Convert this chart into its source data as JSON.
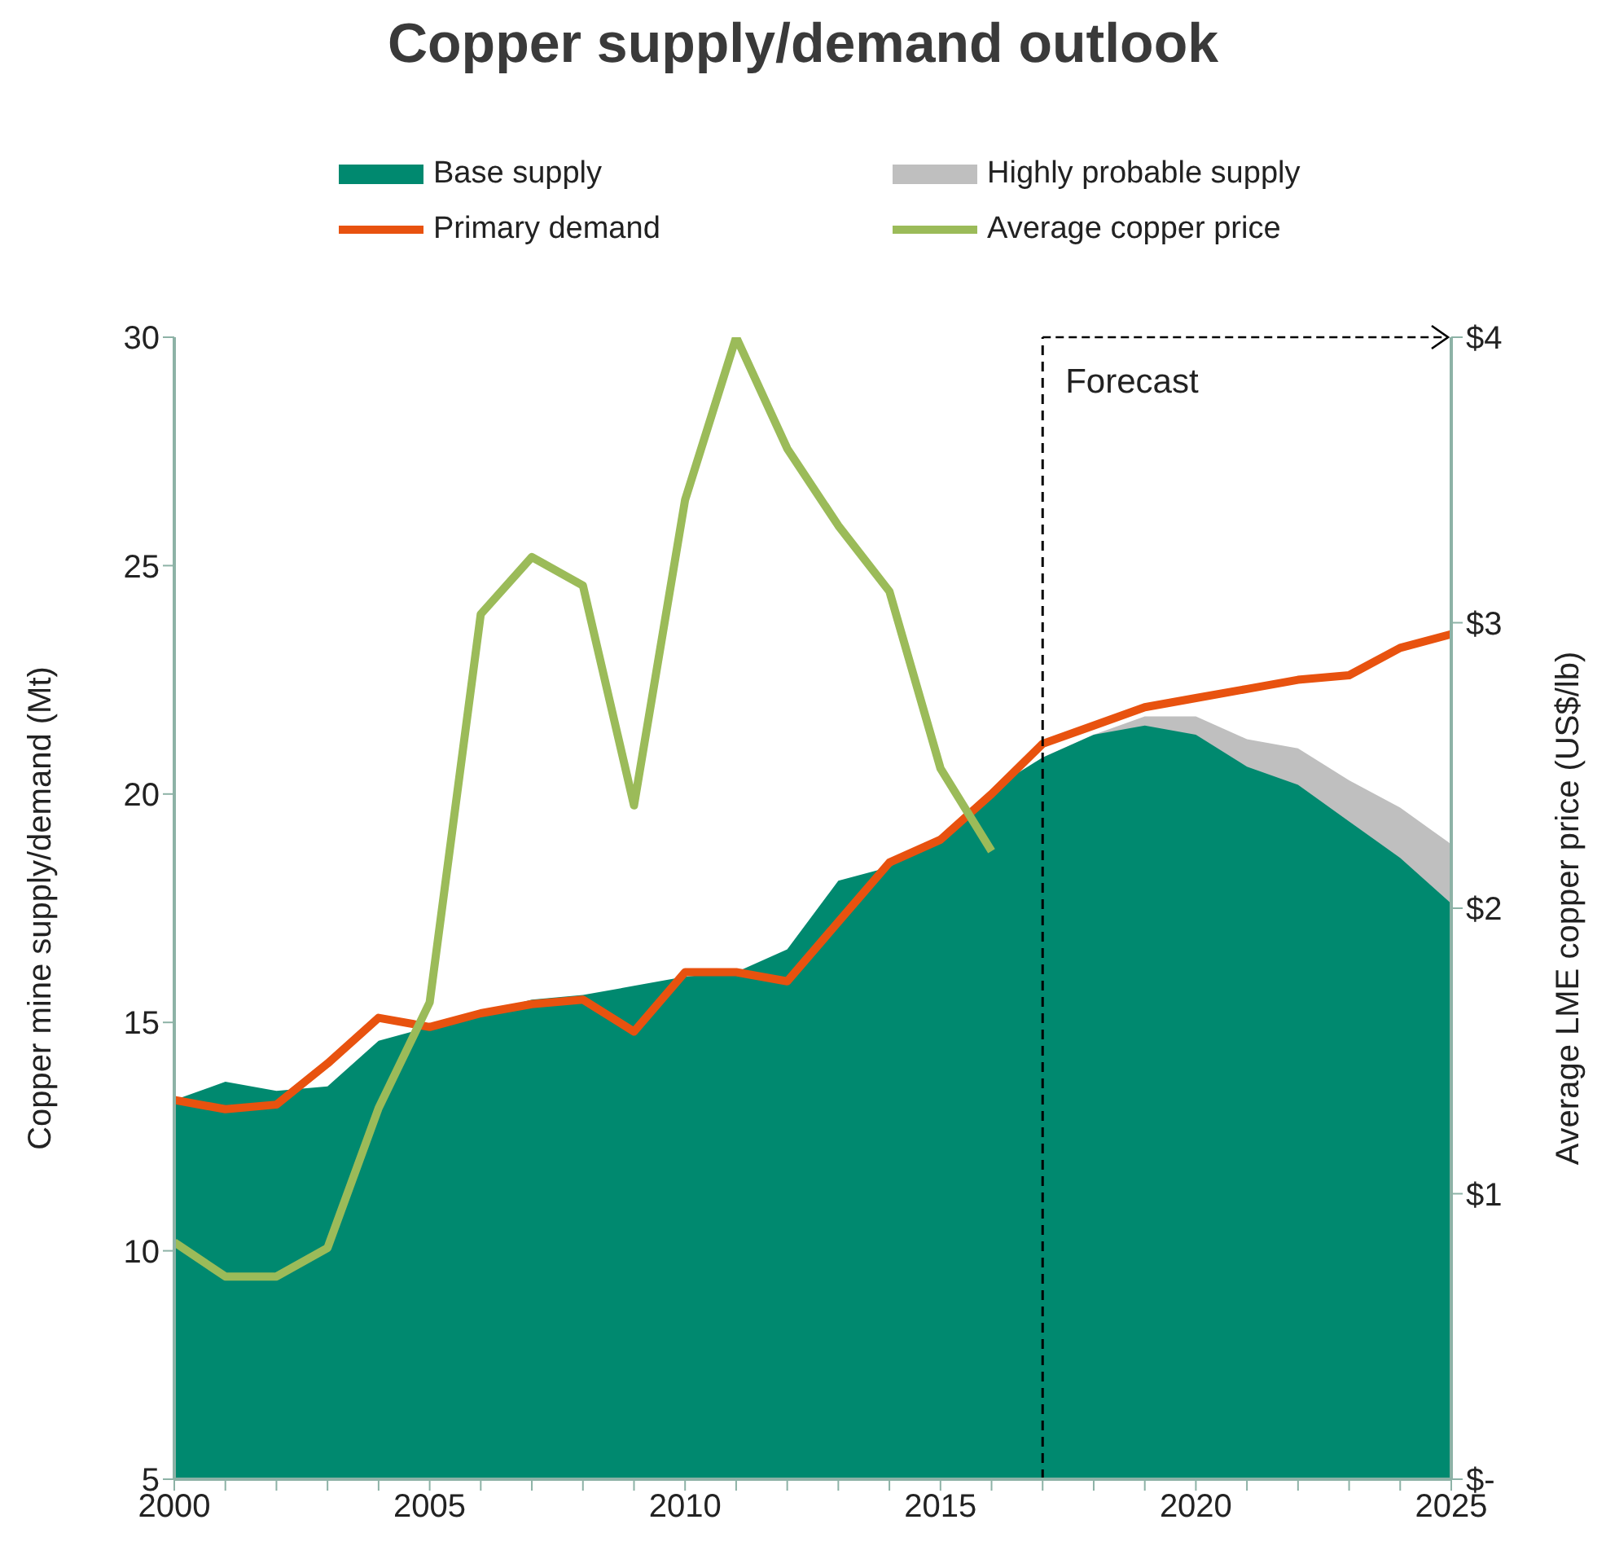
{
  "chart_data": {
    "type": "line",
    "title": "Copper supply/demand outlook",
    "ylabel": "Copper mine supply/demand (Mt)",
    "y2label": "Average LME copper price (US$/lb)",
    "x": [
      2000,
      2001,
      2002,
      2003,
      2004,
      2005,
      2006,
      2007,
      2008,
      2009,
      2010,
      2011,
      2012,
      2013,
      2014,
      2015,
      2016,
      2017,
      2018,
      2019,
      2020,
      2021,
      2022,
      2023,
      2024,
      2025
    ],
    "series": [
      {
        "name": "Base supply",
        "type": "area",
        "color": "#00896f",
        "values": [
          13.3,
          13.7,
          13.5,
          13.6,
          14.6,
          14.9,
          15.2,
          15.5,
          15.6,
          15.8,
          16.0,
          16.1,
          16.6,
          18.1,
          18.4,
          19.1,
          20.1,
          20.8,
          21.3,
          21.5,
          21.3,
          20.6,
          20.2,
          19.4,
          18.6,
          17.6
        ]
      },
      {
        "name": "Highly probable supply",
        "type": "area",
        "color": "#bfbfbf",
        "x": [
          2017,
          2018,
          2019,
          2020,
          2021,
          2022,
          2023,
          2024,
          2025
        ],
        "values": [
          20.8,
          21.3,
          21.7,
          21.7,
          21.2,
          21.0,
          20.3,
          19.7,
          18.9
        ]
      },
      {
        "name": "Primary demand",
        "color": "#e8520f",
        "values": [
          13.3,
          13.1,
          13.2,
          14.1,
          15.1,
          14.9,
          15.2,
          15.4,
          15.5,
          14.8,
          16.1,
          16.1,
          15.9,
          17.2,
          18.5,
          19.0,
          20.0,
          21.1,
          21.5,
          21.9,
          22.1,
          22.3,
          22.5,
          22.6,
          23.2,
          23.5
        ]
      },
      {
        "name": "Average copper price",
        "axis": "y2",
        "color": "#9bbb59",
        "values": [
          0.83,
          0.71,
          0.71,
          0.81,
          1.3,
          1.67,
          3.03,
          3.23,
          3.13,
          2.36,
          3.43,
          4.0,
          3.61,
          3.34,
          3.11,
          2.49,
          2.2,
          null,
          null,
          null,
          null,
          null,
          null,
          null,
          null,
          null
        ]
      }
    ],
    "xlim": [
      2000,
      2025
    ],
    "xticks": [
      2000,
      {
        "value": 2001,
        "label": null
      },
      {
        "value": 2002,
        "label": null
      },
      {
        "value": 2003,
        "label": null
      },
      {
        "value": 2004,
        "label": null
      },
      2005,
      {
        "value": 2006,
        "label": null
      },
      {
        "value": 2007,
        "label": null
      },
      {
        "value": 2008,
        "label": null
      },
      {
        "value": 2009,
        "label": null
      },
      2010,
      {
        "value": 2011,
        "label": null
      },
      {
        "value": 2012,
        "label": null
      },
      {
        "value": 2013,
        "label": null
      },
      {
        "value": 2014,
        "label": null
      },
      2015,
      {
        "value": 2016,
        "label": null
      },
      {
        "value": 2017,
        "label": null
      },
      {
        "value": 2018,
        "label": null
      },
      {
        "value": 2019,
        "label": null
      },
      2020,
      {
        "value": 2021,
        "label": null
      },
      {
        "value": 2022,
        "label": null
      },
      {
        "value": 2023,
        "label": null
      },
      {
        "value": 2024,
        "label": null
      },
      2025
    ],
    "ylim": [
      5,
      30
    ],
    "yticks": [
      5,
      10,
      15,
      20,
      25,
      30
    ],
    "y2lim": [
      0,
      4
    ],
    "y2ticks": [
      {
        "value": 0,
        "label": "$-"
      },
      {
        "value": 1,
        "label": "$1"
      },
      {
        "value": 2,
        "label": "$2"
      },
      {
        "value": 3,
        "label": "$3"
      },
      {
        "value": 4,
        "label": "$4"
      }
    ],
    "ref_lines": [
      {
        "axis": "x",
        "value": 2017,
        "label": "Forecast",
        "color": "#000000",
        "line_style": "dashed"
      }
    ],
    "legend": "top"
  }
}
